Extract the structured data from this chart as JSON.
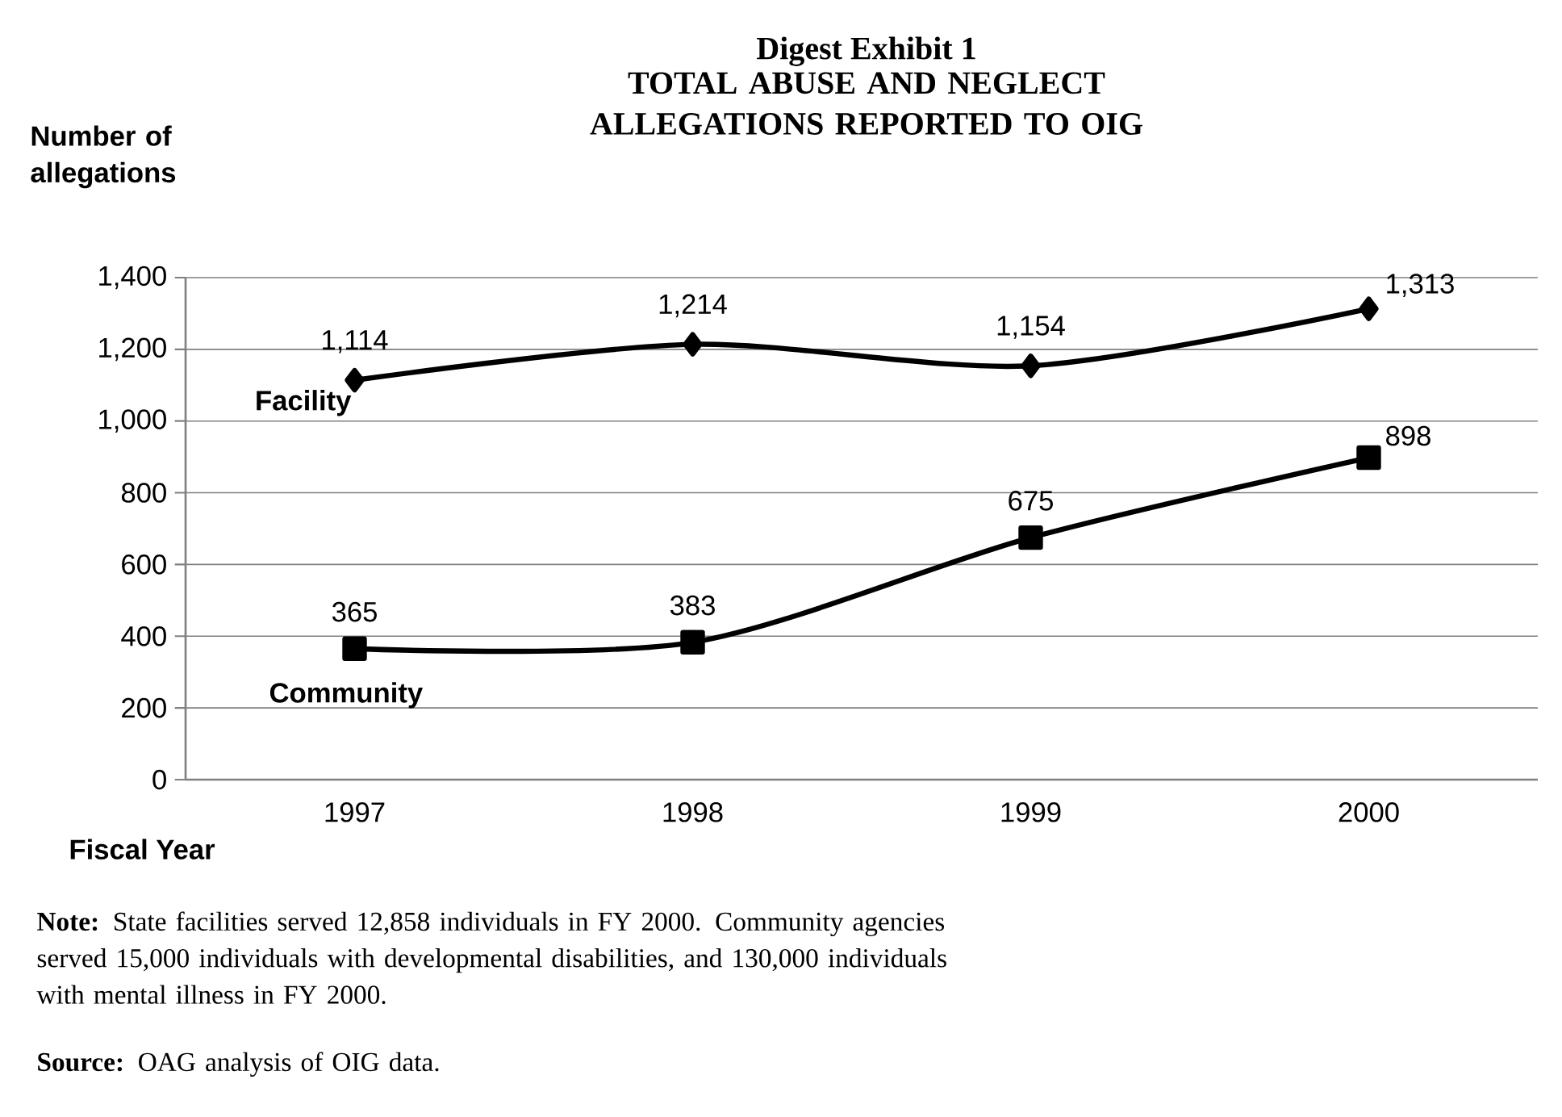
{
  "chart_data": {
    "type": "line",
    "title": "Digest Exhibit 1",
    "subtitle": "TOTAL ABUSE AND NEGLECT ALLEGATIONS REPORTED TO OIG",
    "ylabel": "Number of allegations",
    "xlabel": "Fiscal Year",
    "categories": [
      "1997",
      "1998",
      "1999",
      "2000"
    ],
    "series": [
      {
        "name": "Facility",
        "color": "#000000",
        "marker": "diamond",
        "values": [
          1114,
          1214,
          1154,
          1313
        ],
        "value_labels": [
          "1,114",
          "1,214",
          "1,154",
          "1,313"
        ]
      },
      {
        "name": "Community",
        "color": "#000000",
        "marker": "square",
        "values": [
          365,
          383,
          675,
          898
        ],
        "value_labels": [
          "365",
          "383",
          "675",
          "898"
        ]
      }
    ],
    "ylim": [
      0,
      1400
    ],
    "yticks": [
      {
        "value": 0,
        "label": "0"
      },
      {
        "value": 200,
        "label": "200"
      },
      {
        "value": 400,
        "label": "400"
      },
      {
        "value": 600,
        "label": "600"
      },
      {
        "value": 800,
        "label": "800"
      },
      {
        "value": 1000,
        "label": "1,000"
      },
      {
        "value": 1200,
        "label": "1,200"
      },
      {
        "value": 1400,
        "label": "1,400"
      }
    ],
    "grid": "y",
    "line_style": "solid",
    "annotations": [
      "**Note:** State facilities served 12,858 individuals in FY 2000. Community agencies served 15,000 individuals with developmental disabilities, and 130,000 individuals with mental illness in FY 2000.",
      "**Source:** OAG analysis of OIG data."
    ]
  }
}
